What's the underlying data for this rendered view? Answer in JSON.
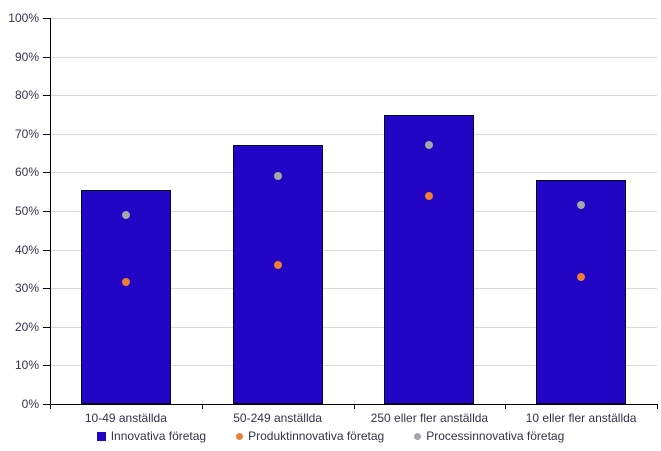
{
  "chart_data": {
    "type": "bar",
    "categories": [
      "10-49 anställda",
      "50-249 anställda",
      "250 eller fler anställda",
      "10 eller fler anställda"
    ],
    "series": [
      {
        "name": "Innovativa företag",
        "render": "bar",
        "marker": "square",
        "color": "#2305C6",
        "values": [
          55.5,
          67,
          75,
          58
        ]
      },
      {
        "name": "Produktinnovativa företag",
        "render": "point",
        "marker": "circle",
        "color": "#ED7D31",
        "values": [
          31.5,
          36,
          54,
          33
        ]
      },
      {
        "name": "Processinnovativa företag",
        "render": "point",
        "marker": "circle",
        "color": "#A6A6A6",
        "values": [
          49,
          59,
          67,
          51.5
        ]
      }
    ],
    "ylim": [
      0,
      100
    ],
    "ytick_step": 10,
    "grid": true,
    "legend_position": "bottom",
    "gridline_color": "#D9D9D9",
    "axis_color": "#000000",
    "text_color": "#33334D"
  },
  "y_axis": {
    "tick_labels": [
      "0%",
      "10%",
      "20%",
      "30%",
      "40%",
      "50%",
      "60%",
      "70%",
      "80%",
      "90%",
      "100%"
    ]
  }
}
